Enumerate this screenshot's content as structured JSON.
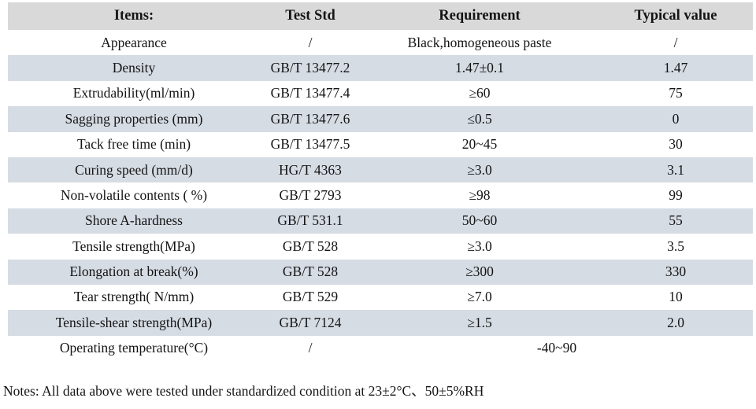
{
  "colors": {
    "header_bg": "#d9d9d9",
    "alt_row_bg": "#d6dce4",
    "text": "#141414",
    "page_bg": "#ffffff"
  },
  "table": {
    "headers": {
      "items": "Items:",
      "std": "Test Std",
      "req": "Requirement",
      "typ": "Typical value"
    },
    "rows": [
      {
        "item": "Appearance",
        "std": "/",
        "req": "Black,homogeneous paste",
        "typ": "/"
      },
      {
        "item": "Density",
        "std": "GB/T 13477.2",
        "req": "1.47±0.1",
        "typ": "1.47"
      },
      {
        "item": "Extrudability(ml/min)",
        "std": "GB/T 13477.4",
        "req": "≥60",
        "typ": "75"
      },
      {
        "item": "Sagging properties (mm)",
        "std": "GB/T 13477.6",
        "req": "≤0.5",
        "typ": "0"
      },
      {
        "item": "Tack free time (min)",
        "std": "GB/T 13477.5",
        "req": "20~45",
        "typ": "30"
      },
      {
        "item": "Curing speed (mm/d)",
        "std": "HG/T 4363",
        "req": "≥3.0",
        "typ": "3.1"
      },
      {
        "item": "Non-volatile contents ( %)",
        "std": "GB/T 2793",
        "req": "≥98",
        "typ": "99"
      },
      {
        "item": "Shore A-hardness",
        "std": "GB/T 531.1",
        "req": "50~60",
        "typ": "55"
      },
      {
        "item": "Tensile strength(MPa)",
        "std": "GB/T 528",
        "req": "≥3.0",
        "typ": "3.5"
      },
      {
        "item": "Elongation at break(%)",
        "std": "GB/T 528",
        "req": "≥300",
        "typ": "330"
      },
      {
        "item": "Tear strength( N/mm)",
        "std": "GB/T 529",
        "req": "≥7.0",
        "typ": "10"
      },
      {
        "item": "Tensile-shear strength(MPa)",
        "std": "GB/T 7124",
        "req": "≥1.5",
        "typ": "2.0"
      },
      {
        "item": "Operating temperature(°C)",
        "std": "/",
        "req": "-40~90"
      }
    ]
  },
  "notes": "Notes: All data above were tested under standardized condition at 23±2°C、50±5%RH"
}
